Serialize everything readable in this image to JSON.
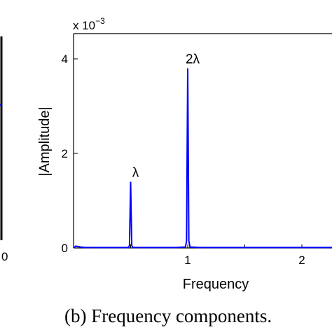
{
  "caption": "(b) Frequency components.",
  "left_panel": {
    "x_tick_label": "0"
  },
  "chart_data": {
    "type": "line",
    "xlabel": "Frequency",
    "ylabel": "|Amplitude|",
    "y_scale_label": "x 10",
    "y_scale_exponent": "−3",
    "x_ticks": [
      {
        "value": 1,
        "label": "1"
      },
      {
        "value": 2,
        "label": "2"
      }
    ],
    "y_ticks": [
      {
        "value": 0,
        "label": "0"
      },
      {
        "value": 2,
        "label": "2"
      },
      {
        "value": 4,
        "label": "4"
      }
    ],
    "xlim": [
      0,
      2.5
    ],
    "ylim": [
      0,
      4.5
    ],
    "y_unit_multiplier": 0.001,
    "grid": false,
    "series_color": "#0000ff",
    "series": [
      {
        "x": [
          0.0,
          0.02,
          0.04,
          0.06,
          0.1,
          0.2,
          0.3,
          0.4,
          0.48,
          0.49,
          0.5,
          0.51,
          0.52,
          0.6,
          0.7,
          0.8,
          0.9,
          0.98,
          0.99,
          1.0,
          1.01,
          1.02,
          1.1,
          1.2,
          1.3,
          1.4,
          1.5,
          1.6,
          1.7,
          1.8,
          1.9,
          2.0,
          2.1,
          2.2,
          2.3,
          2.4,
          2.5
        ],
        "values": [
          0.0,
          0.04,
          0.03,
          0.02,
          0.01,
          0.01,
          0.01,
          0.01,
          0.01,
          0.05,
          1.4,
          0.05,
          0.01,
          0.01,
          0.01,
          0.01,
          0.01,
          0.02,
          0.15,
          3.8,
          0.15,
          0.02,
          0.01,
          0.01,
          0.01,
          0.01,
          0.01,
          0.01,
          0.01,
          0.01,
          0.01,
          0.01,
          0.01,
          0.01,
          0.01,
          0.01,
          0.01
        ]
      }
    ],
    "annotations": [
      {
        "text": "λ",
        "x": 0.5,
        "y": 1.4
      },
      {
        "text": "2λ",
        "x": 1.0,
        "y": 3.8
      }
    ]
  }
}
